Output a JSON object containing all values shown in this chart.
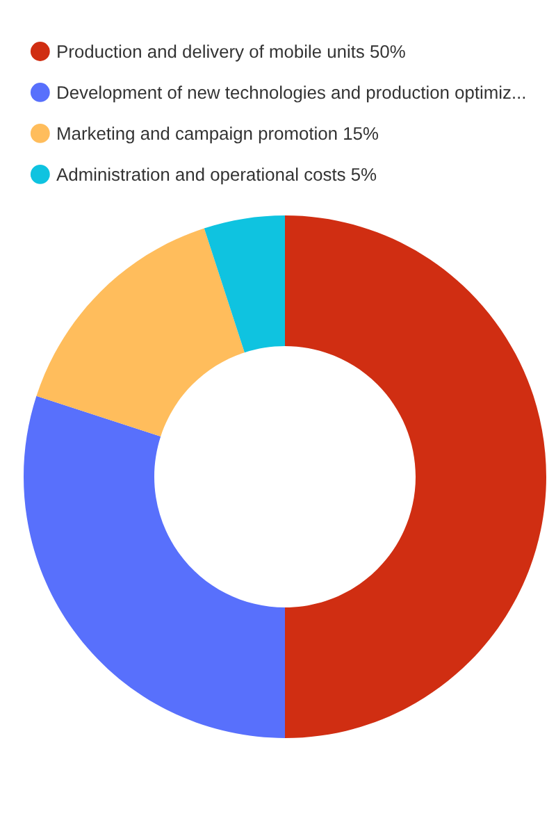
{
  "chart_data": {
    "type": "donut",
    "categories": [
      "Production and delivery of mobile units 50%",
      "Development of new technologies and production optimiz...",
      "Marketing and campaign promotion 15%",
      "Administration and operational costs 5%"
    ],
    "values": [
      50,
      30,
      15,
      5
    ],
    "colors": [
      "#d02e12",
      "#5870fc",
      "#ffbd5c",
      "#0fc3e0"
    ],
    "legend": "top left"
  }
}
